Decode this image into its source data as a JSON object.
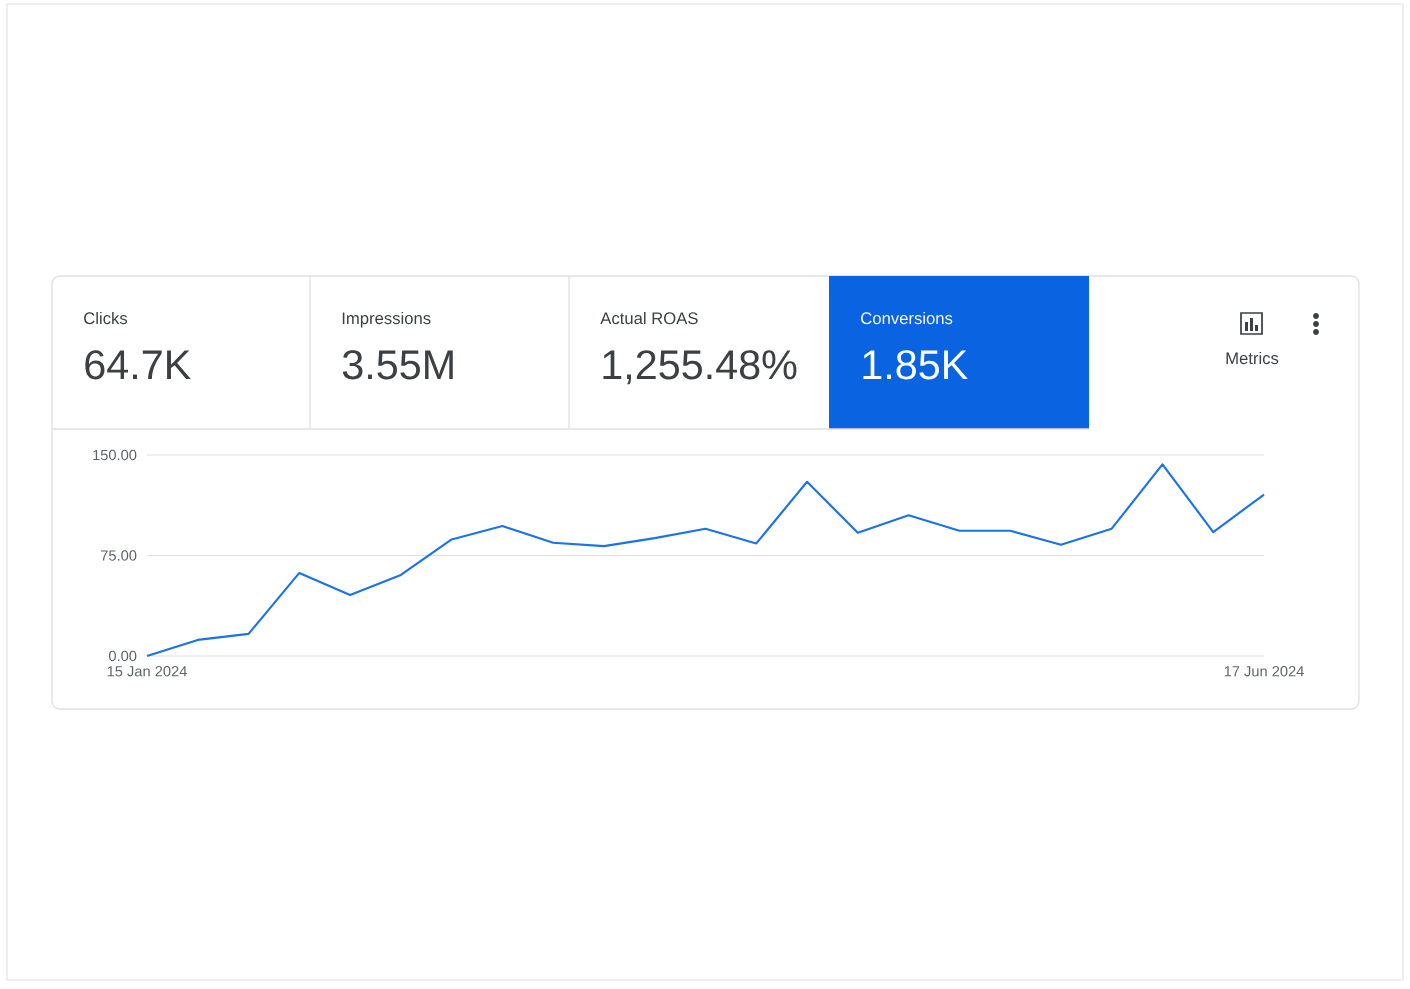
{
  "chart_data": {
    "type": "line",
    "annotations": [
      "Clicks",
      "64.7K",
      "Impressions",
      "3.55M",
      "Actual ROAS",
      "1,255.48%",
      "Conversions",
      "1.85K",
      "Metrics"
    ],
    "x": [
      "2024-01-15",
      "2024-01-22",
      "2024-01-29",
      "2024-02-05",
      "2024-02-12",
      "2024-02-19",
      "2024-02-26",
      "2024-03-04",
      "2024-03-11",
      "2024-03-18",
      "2024-03-25",
      "2024-04-01",
      "2024-04-08",
      "2024-04-15",
      "2024-04-22",
      "2024-04-29",
      "2024-05-06",
      "2024-05-13",
      "2024-05-20",
      "2024-05-27",
      "2024-06-03",
      "2024-06-10",
      "2024-06-17"
    ],
    "series": [
      {
        "color": "#1a73e8",
        "values": [
          0,
          12,
          16.5,
          62,
          45.5,
          60.5,
          87,
          97,
          84.5,
          82,
          88,
          95,
          84,
          130,
          92,
          105,
          93.5,
          93.5,
          83,
          95,
          143,
          92.5,
          120.5
        ]
      }
    ],
    "xlim": [
      "2024-01-15",
      "2024-06-17"
    ],
    "xticks": [
      {
        "value": "2024-01-15",
        "label": "15 Jan 2024"
      },
      {
        "value": "2024-06-17",
        "label": "17 Jun 2024"
      }
    ],
    "ylim": [
      0,
      150
    ],
    "yticks": [
      {
        "value": 0,
        "label": "0.00"
      },
      {
        "value": 75,
        "label": "75.00"
      },
      {
        "value": 150,
        "label": "150.00"
      }
    ],
    "grid": "y",
    "marker": "none",
    "line_style": "solid"
  }
}
